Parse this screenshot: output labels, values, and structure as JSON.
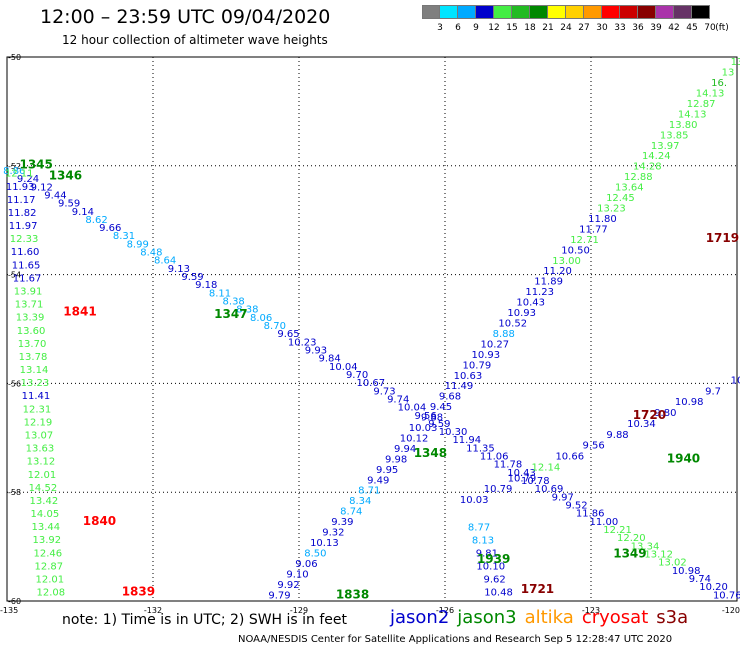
{
  "header": {
    "title": "12:00 – 23:59 UTC 09/04/2020",
    "subtitle": "12 hour collection of altimeter wave heights"
  },
  "legend": {
    "unit": "(ft)",
    "bins": [
      {
        "label": "3",
        "color": "#7f7f7f"
      },
      {
        "label": "6",
        "color": "#00e5ff"
      },
      {
        "label": "9",
        "color": "#00aaff"
      },
      {
        "label": "12",
        "color": "#0000cc"
      },
      {
        "label": "15",
        "color": "#44ee44"
      },
      {
        "label": "18",
        "color": "#22bb22"
      },
      {
        "label": "21",
        "color": "#008800"
      },
      {
        "label": "24",
        "color": "#ffff00"
      },
      {
        "label": "27",
        "color": "#ffd000"
      },
      {
        "label": "30",
        "color": "#ff9900"
      },
      {
        "label": "33",
        "color": "#ff0000"
      },
      {
        "label": "36",
        "color": "#cc0000"
      },
      {
        "label": "39",
        "color": "#880000"
      },
      {
        "label": "42",
        "color": "#aa33aa"
      },
      {
        "label": "45",
        "color": "#663366"
      },
      {
        "label": "70",
        "color": "#000000"
      }
    ]
  },
  "axes": {
    "lat_labels": [
      "-50",
      "-52",
      "-54",
      "-56",
      "-58",
      "-60"
    ],
    "lon_labels": [
      "-135",
      "-132",
      "-129",
      "-126",
      "-123",
      "-120"
    ]
  },
  "tracks": [
    {
      "id": "A",
      "from_lon": -134.85,
      "from_lat": -52.15,
      "to_lon": -120.2,
      "to_lat": -59.95,
      "values": [
        "8.86",
        "9.24",
        "9.12",
        "9.44",
        "9.59",
        "9.14",
        "8.62",
        "9.66",
        "8.31",
        "8.99",
        "8.48",
        "8.64",
        "9.13",
        "9.59",
        "9.18",
        "8.11",
        "8.38",
        "8.38",
        "8.06",
        "8.70",
        "9.65",
        "10.23",
        "9.93",
        "9.84",
        "10.04",
        "9.70",
        "10.67",
        "9.73",
        "9.74",
        "10.04",
        "9.56",
        "9.59",
        "10.30",
        "11.94",
        "11.35",
        "11.06",
        "11.78",
        "10.43",
        "10.78",
        "10.69",
        "9.97",
        "9.52",
        "11.86",
        "11.00",
        "12.21",
        "12.20",
        "13.34",
        "13.12",
        "13.02",
        "10.98",
        "9.74",
        "10.20",
        "10.76"
      ]
    },
    {
      "id": "B",
      "from_lon": -129.4,
      "from_lat": -59.95,
      "to_lon": -120.0,
      "to_lat": -50.15,
      "values": [
        "9.79",
        "9.92",
        "9.10",
        "9.06",
        "8.50",
        "10.13",
        "9.32",
        "9.39",
        "8.74",
        "8.34",
        "8.71",
        "9.49",
        "9.95",
        "9.98",
        "9.94",
        "10.12",
        "10.03",
        "9.88",
        "9.45",
        "9.68",
        "11.49",
        "10.63",
        "10.79",
        "10.93",
        "10.27",
        "8.88",
        "10.52",
        "10.93",
        "10.43",
        "11.23",
        "11.89",
        "11.20",
        "13.00",
        "10.50",
        "12.71",
        "11.77",
        "11.80",
        "13.23",
        "12.45",
        "13.64",
        "12.88",
        "14.28",
        "14.24",
        "13.97",
        "13.85",
        "13.80",
        "14.13",
        "12.87",
        "14.13",
        "16.",
        "13",
        "13"
      ]
    },
    {
      "id": "C",
      "from_lon": -134.75,
      "from_lat": -52.2,
      "to_lon": -134.1,
      "to_lat": -59.9,
      "values": [
        "12.11",
        "11.93",
        "11.17",
        "11.82",
        "11.97",
        "12.33",
        "11.60",
        "11.65",
        "11.67",
        "13.91",
        "13.71",
        "13.39",
        "13.60",
        "13.70",
        "13.78",
        "13.14",
        "13.23",
        "11.41",
        "12.31",
        "12.19",
        "13.07",
        "13.63",
        "13.12",
        "12.01",
        "14.52",
        "13.42",
        "14.05",
        "13.44",
        "13.92",
        "12.46",
        "12.87",
        "12.01",
        "12.08"
      ]
    },
    {
      "id": "D",
      "from_lon": -125.4,
      "from_lat": -58.2,
      "to_lon": -120.0,
      "to_lat": -56.0,
      "values": [
        "10.03",
        "10.79",
        "10.79",
        "12.14",
        "10.66",
        "9.56",
        "9.88",
        "10.34",
        "9.80",
        "10.98",
        "9.7",
        "10"
      ]
    },
    {
      "id": "E",
      "from_lon": -125.3,
      "from_lat": -58.7,
      "to_lon": -124.9,
      "to_lat": -59.9,
      "values": [
        "8.77",
        "8.13",
        "9.81",
        "10.10",
        "9.62",
        "10.48"
      ]
    }
  ],
  "time_labels": [
    {
      "text": "1345",
      "lon": -134.4,
      "lat": -52.05,
      "color": "#008800"
    },
    {
      "text": "1346",
      "lon": -133.8,
      "lat": -52.25,
      "color": "#008800"
    },
    {
      "text": "1841",
      "lon": -133.5,
      "lat": -54.75,
      "color": "#ff0000"
    },
    {
      "text": "1347",
      "lon": -130.4,
      "lat": -54.8,
      "color": "#008800"
    },
    {
      "text": "1348",
      "lon": -126.3,
      "lat": -57.35,
      "color": "#008800"
    },
    {
      "text": "1840",
      "lon": -133.1,
      "lat": -58.6,
      "color": "#ff0000"
    },
    {
      "text": "1939",
      "lon": -125.0,
      "lat": -59.3,
      "color": "#008800"
    },
    {
      "text": "1838",
      "lon": -127.9,
      "lat": -59.95,
      "color": "#008800"
    },
    {
      "text": "1839",
      "lon": -132.3,
      "lat": -59.9,
      "color": "#ff0000"
    },
    {
      "text": "1721",
      "lon": -124.1,
      "lat": -59.85,
      "color": "#880000"
    },
    {
      "text": "1349",
      "lon": -122.2,
      "lat": -59.2,
      "color": "#008800"
    },
    {
      "text": "1940",
      "lon": -121.1,
      "lat": -57.45,
      "color": "#008800"
    },
    {
      "text": "1720",
      "lon": -121.8,
      "lat": -56.65,
      "color": "#880000"
    },
    {
      "text": "1719",
      "lon": -120.3,
      "lat": -53.4,
      "color": "#880000"
    }
  ],
  "footer": {
    "note": "note:  1) Time is in UTC;  2) SWH is in feet",
    "satellites": [
      {
        "name": "jason2",
        "color": "#0000cc"
      },
      {
        "name": "jason3",
        "color": "#008800"
      },
      {
        "name": "altika",
        "color": "#ff9900"
      },
      {
        "name": "cryosat",
        "color": "#ff0000"
      },
      {
        "name": "s3a",
        "color": "#880000"
      }
    ],
    "credit": "NOAA/NESDIS Center for Satellite Applications and Research   Sep  5 12:28:47 UTC 2020"
  }
}
